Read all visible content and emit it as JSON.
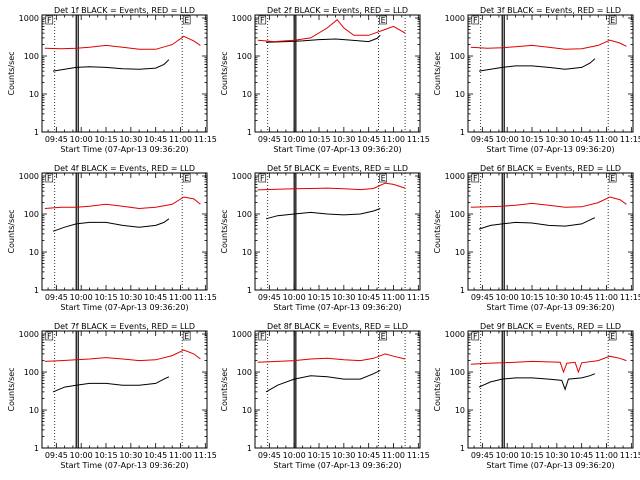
{
  "colors": {
    "events": "#000000",
    "lld": "#e00000",
    "axes": "#000000",
    "background": "#ffffff"
  },
  "shared": {
    "ylabel": "Counts/sec",
    "xlabel": "Start Time (07-Apr-13 09:36:20)",
    "x_tick_labels": [
      "09:45",
      "10:00",
      "10:15",
      "10:30",
      "10:45",
      "11:00",
      "11:15"
    ],
    "x_ticks_min": [
      585,
      600,
      615,
      630,
      645,
      660,
      675
    ],
    "y_tick_labels": [
      "1",
      "10",
      "100",
      "1000"
    ],
    "y_ticks": [
      1,
      10,
      100,
      1000
    ],
    "xlim_min": [
      576.33,
      676
    ],
    "ylim": [
      1,
      1200
    ],
    "y_scale": "log",
    "marker_labels": [
      "F",
      "E"
    ]
  },
  "chart_data": [
    {
      "type": "line",
      "title": "Det 1f BLACK = Events, RED = LLD",
      "x_unit": "minutes after 00:00",
      "markers": {
        "dotted": [
          584,
          661,
          676
        ],
        "solid": [
          597,
          598.2
        ],
        "labels_at": [
          578,
          661
        ]
      },
      "series": [
        {
          "name": "Events",
          "x": [
            583,
            590,
            597,
            605,
            615,
            625,
            635,
            645,
            650,
            653
          ],
          "y": [
            40,
            45,
            50,
            52,
            50,
            46,
            45,
            48,
            60,
            80
          ]
        },
        {
          "name": "LLD",
          "x": [
            578,
            588,
            597,
            605,
            615,
            625,
            635,
            645,
            655,
            662,
            668,
            672
          ],
          "y": [
            160,
            155,
            160,
            170,
            190,
            170,
            150,
            150,
            200,
            330,
            250,
            190
          ]
        }
      ]
    },
    {
      "type": "line",
      "title": "Det 2f BLACK = Events, RED = LLD",
      "x_unit": "minutes after 00:00",
      "markers": {
        "dotted": [
          584,
          651,
          667
        ],
        "solid": [
          600,
          601
        ],
        "labels_at": [
          578,
          651
        ]
      },
      "series": [
        {
          "name": "Events",
          "x": [
            583,
            595,
            605,
            615,
            625,
            635,
            645,
            650,
            652
          ],
          "y": [
            230,
            240,
            250,
            270,
            280,
            260,
            240,
            290,
            350
          ]
        },
        {
          "name": "LLD",
          "x": [
            578,
            588,
            600,
            610,
            620,
            626,
            630,
            636,
            645,
            652,
            660,
            667
          ],
          "y": [
            260,
            240,
            260,
            300,
            550,
            900,
            550,
            350,
            350,
            450,
            600,
            400
          ]
        }
      ]
    },
    {
      "type": "line",
      "title": "Det 3f BLACK = Events, RED = LLD",
      "x_unit": "minutes after 00:00",
      "markers": {
        "dotted": [
          584,
          661,
          676
        ],
        "solid": [
          597,
          598.2
        ],
        "labels_at": [
          578,
          661
        ]
      },
      "series": [
        {
          "name": "Events",
          "x": [
            583,
            590,
            597,
            605,
            615,
            625,
            635,
            645,
            650,
            653
          ],
          "y": [
            40,
            45,
            50,
            55,
            55,
            50,
            45,
            50,
            65,
            85
          ]
        },
        {
          "name": "LLD",
          "x": [
            578,
            588,
            597,
            605,
            615,
            625,
            635,
            645,
            655,
            662,
            668,
            672
          ],
          "y": [
            170,
            160,
            165,
            175,
            190,
            170,
            150,
            155,
            190,
            260,
            220,
            180
          ]
        }
      ]
    },
    {
      "type": "line",
      "title": "Det 4f BLACK = Events, RED = LLD",
      "x_unit": "minutes after 00:00",
      "markers": {
        "dotted": [
          584,
          661,
          676
        ],
        "solid": [
          597,
          598.2
        ],
        "labels_at": [
          578,
          661
        ]
      },
      "series": [
        {
          "name": "Events",
          "x": [
            583,
            590,
            597,
            605,
            615,
            625,
            635,
            645,
            650,
            653
          ],
          "y": [
            35,
            45,
            55,
            60,
            60,
            50,
            45,
            50,
            60,
            75
          ]
        },
        {
          "name": "LLD",
          "x": [
            578,
            588,
            597,
            605,
            615,
            625,
            635,
            645,
            655,
            662,
            668,
            672
          ],
          "y": [
            140,
            150,
            150,
            160,
            180,
            160,
            140,
            150,
            180,
            280,
            250,
            180
          ]
        }
      ]
    },
    {
      "type": "line",
      "title": "Det 5f BLACK = Events, RED = LLD",
      "x_unit": "minutes after 00:00",
      "markers": {
        "dotted": [
          584,
          651,
          667
        ],
        "solid": [
          600,
          601
        ],
        "labels_at": [
          578,
          651
        ]
      },
      "series": [
        {
          "name": "Events",
          "x": [
            583,
            590,
            600,
            610,
            620,
            630,
            640,
            648,
            652
          ],
          "y": [
            75,
            90,
            100,
            110,
            100,
            95,
            100,
            120,
            140
          ]
        },
        {
          "name": "LLD",
          "x": [
            578,
            590,
            600,
            610,
            620,
            630,
            640,
            648,
            655,
            660,
            667
          ],
          "y": [
            430,
            450,
            460,
            470,
            480,
            460,
            440,
            470,
            650,
            600,
            480
          ]
        }
      ]
    },
    {
      "type": "line",
      "title": "Det 6f BLACK = Events, RED = LLD",
      "x_unit": "minutes after 00:00",
      "markers": {
        "dotted": [
          584,
          661,
          676
        ],
        "solid": [
          597,
          598.2
        ],
        "labels_at": [
          578,
          661
        ]
      },
      "series": [
        {
          "name": "Events",
          "x": [
            583,
            590,
            597,
            605,
            615,
            625,
            635,
            645,
            650,
            653
          ],
          "y": [
            40,
            50,
            55,
            60,
            58,
            50,
            48,
            55,
            70,
            80
          ]
        },
        {
          "name": "LLD",
          "x": [
            578,
            588,
            597,
            605,
            615,
            625,
            635,
            645,
            655,
            662,
            668,
            672
          ],
          "y": [
            150,
            155,
            160,
            170,
            190,
            170,
            150,
            155,
            200,
            280,
            240,
            180
          ]
        }
      ]
    },
    {
      "type": "line",
      "title": "Det 7f BLACK = Events, RED = LLD",
      "x_unit": "minutes after 00:00",
      "markers": {
        "dotted": [
          584,
          661,
          676
        ],
        "solid": [
          597,
          598.2
        ],
        "labels_at": [
          578,
          661
        ]
      },
      "series": [
        {
          "name": "Events",
          "x": [
            583,
            590,
            597,
            605,
            615,
            625,
            635,
            645,
            650,
            653
          ],
          "y": [
            30,
            40,
            45,
            50,
            50,
            45,
            45,
            50,
            65,
            75
          ]
        },
        {
          "name": "LLD",
          "x": [
            578,
            588,
            597,
            605,
            615,
            625,
            635,
            645,
            655,
            662,
            668,
            672
          ],
          "y": [
            190,
            200,
            210,
            220,
            240,
            220,
            200,
            210,
            270,
            380,
            300,
            220
          ]
        }
      ]
    },
    {
      "type": "line",
      "title": "Det 8f BLACK = Events, RED = LLD",
      "x_unit": "minutes after 00:00",
      "markers": {
        "dotted": [
          584,
          651,
          667
        ],
        "solid": [
          600,
          601
        ],
        "labels_at": [
          578,
          651
        ]
      },
      "series": [
        {
          "name": "Events",
          "x": [
            583,
            590,
            600,
            610,
            620,
            630,
            640,
            648,
            652
          ],
          "y": [
            30,
            45,
            65,
            80,
            75,
            65,
            65,
            90,
            110
          ]
        },
        {
          "name": "LLD",
          "x": [
            578,
            590,
            600,
            610,
            620,
            630,
            640,
            648,
            655,
            660,
            667
          ],
          "y": [
            180,
            190,
            200,
            220,
            230,
            210,
            200,
            230,
            300,
            260,
            220
          ]
        }
      ]
    },
    {
      "type": "line",
      "title": "Det 9f BLACK = Events, RED = LLD",
      "x_unit": "minutes after 00:00",
      "markers": {
        "dotted": [
          584,
          661,
          676
        ],
        "solid": [
          597,
          598.2
        ],
        "labels_at": [
          578,
          661
        ]
      },
      "series": [
        {
          "name": "Events",
          "x": [
            583,
            590,
            597,
            605,
            615,
            625,
            633,
            635,
            637,
            645,
            650,
            653
          ],
          "y": [
            40,
            55,
            65,
            70,
            70,
            65,
            60,
            35,
            65,
            70,
            80,
            90
          ]
        },
        {
          "name": "LLD",
          "x": [
            578,
            588,
            597,
            605,
            615,
            625,
            632,
            634,
            636,
            641,
            643,
            645,
            655,
            662,
            668,
            672
          ],
          "y": [
            160,
            170,
            175,
            180,
            190,
            185,
            180,
            100,
            170,
            180,
            100,
            175,
            200,
            260,
            230,
            200
          ]
        }
      ]
    }
  ]
}
